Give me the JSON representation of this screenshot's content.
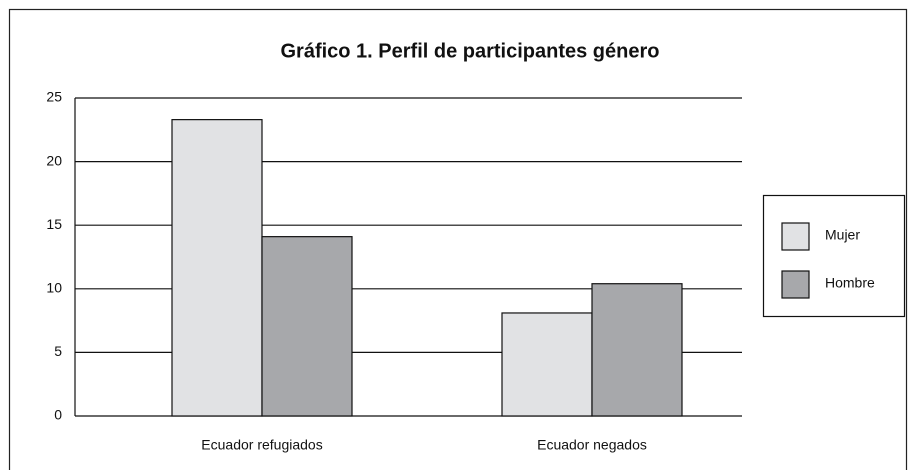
{
  "chart_data": {
    "type": "bar",
    "title": "Gráfico 1. Perfil de participantes género",
    "categories": [
      "Ecuador refugiados",
      "Ecuador negados"
    ],
    "series": [
      {
        "name": "Mujer",
        "color": "#e1e2e4",
        "values": [
          23.3,
          8.1
        ]
      },
      {
        "name": "Hombre",
        "color": "#a7a8ab",
        "values": [
          14.1,
          10.4
        ]
      }
    ],
    "ylim": [
      0,
      25
    ],
    "yticks": [
      0,
      5,
      10,
      15,
      20,
      25
    ],
    "grid": true,
    "legend": "right"
  }
}
